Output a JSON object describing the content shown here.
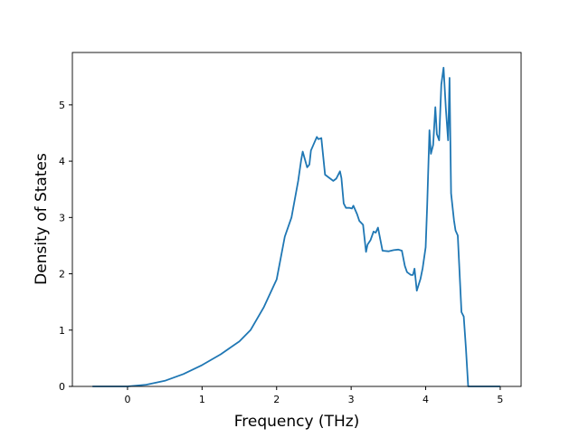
{
  "chart_data": {
    "type": "line",
    "title": "",
    "xlabel": "Frequency (THz)",
    "ylabel": "Density of States",
    "xlim": [
      -0.74,
      5.28
    ],
    "ylim": [
      0,
      5.93
    ],
    "xticks": [
      "0",
      "1",
      "2",
      "3",
      "4",
      "5"
    ],
    "yticks": [
      "0",
      "1",
      "2",
      "3",
      "4",
      "5"
    ],
    "grid": false,
    "line_color": "#1f77b4",
    "series": [
      {
        "x": [
          -0.47,
          0,
          0.25,
          0.5,
          0.75,
          1.0,
          1.25,
          1.5,
          1.65,
          1.83,
          2.0,
          2.11,
          2.2,
          2.29,
          2.33,
          2.35,
          2.41,
          2.44,
          2.46,
          2.54,
          2.56,
          2.6,
          2.65,
          2.7,
          2.76,
          2.8,
          2.85,
          2.87,
          2.9,
          2.93,
          2.98,
          3.01,
          3.03,
          3.08,
          3.11,
          3.16,
          3.2,
          3.22,
          3.26,
          3.3,
          3.33,
          3.36,
          3.42,
          3.5,
          3.57,
          3.63,
          3.68,
          3.72,
          3.75,
          3.8,
          3.83,
          3.85,
          3.88,
          3.93,
          3.96,
          4.0,
          4.02,
          4.05,
          4.07,
          4.1,
          4.13,
          4.15,
          4.18,
          4.21,
          4.24,
          4.27,
          4.3,
          4.32,
          4.34,
          4.38,
          4.4,
          4.43,
          4.48,
          4.51,
          4.54,
          4.57,
          5.0
        ],
        "y": [
          0,
          0,
          0.03,
          0.1,
          0.22,
          0.38,
          0.57,
          0.8,
          1.0,
          1.41,
          1.9,
          2.66,
          3.0,
          3.65,
          4.02,
          4.17,
          3.89,
          3.94,
          4.19,
          4.43,
          4.39,
          4.41,
          3.76,
          3.71,
          3.65,
          3.69,
          3.82,
          3.7,
          3.25,
          3.17,
          3.17,
          3.16,
          3.21,
          3.06,
          2.94,
          2.87,
          2.39,
          2.52,
          2.6,
          2.75,
          2.73,
          2.82,
          2.41,
          2.4,
          2.42,
          2.43,
          2.41,
          2.14,
          2.03,
          1.98,
          1.98,
          2.09,
          1.7,
          1.91,
          2.1,
          2.47,
          3.22,
          4.55,
          4.13,
          4.29,
          4.96,
          4.48,
          4.37,
          5.36,
          5.66,
          4.94,
          4.37,
          5.48,
          3.43,
          2.95,
          2.77,
          2.68,
          1.32,
          1.24,
          0.68,
          0,
          0
        ]
      }
    ]
  }
}
